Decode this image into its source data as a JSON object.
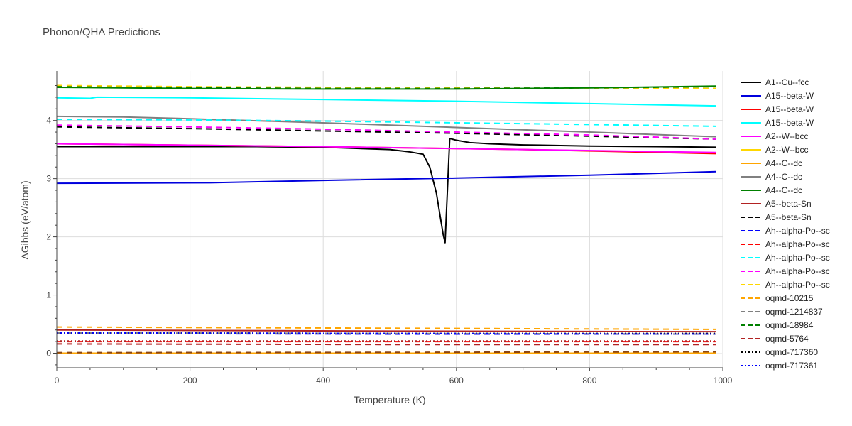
{
  "chart_data": {
    "type": "line",
    "title": "Phonon/QHA Predictions",
    "xlabel": "Temperature (K)",
    "ylabel": "ΔGibbs (eV/atom)",
    "xlim": [
      0,
      1000
    ],
    "ylim": [
      -0.25,
      4.85
    ],
    "xticks": [
      0,
      200,
      400,
      600,
      800,
      1000
    ],
    "yticks": [
      0,
      1,
      2,
      3,
      4
    ],
    "grid": true,
    "legend_position": "right",
    "series": [
      {
        "name": "A1--Cu--fcc",
        "color": "#000000",
        "dash": "solid",
        "x": [
          0,
          100,
          200,
          300,
          400,
          450,
          500,
          530,
          540,
          550,
          560,
          570,
          580,
          583,
          590,
          600,
          620,
          650,
          700,
          800,
          900,
          990
        ],
        "y": [
          3.55,
          3.55,
          3.55,
          3.55,
          3.54,
          3.52,
          3.5,
          3.46,
          3.44,
          3.42,
          3.2,
          2.75,
          2.05,
          1.9,
          3.69,
          3.66,
          3.62,
          3.6,
          3.58,
          3.56,
          3.55,
          3.54
        ]
      },
      {
        "name": "A15--beta-W",
        "color": "#0000dd",
        "dash": "solid",
        "x": [
          0,
          230,
          400,
          600,
          800,
          990
        ],
        "y": [
          2.92,
          2.93,
          2.97,
          3.01,
          3.06,
          3.12
        ]
      },
      {
        "name": "A15--beta-W",
        "color": "#ff0000",
        "dash": "solid",
        "x": [
          0,
          400,
          700,
          990
        ],
        "y": [
          3.6,
          3.55,
          3.5,
          3.43
        ]
      },
      {
        "name": "A15--beta-W",
        "color": "#00ffff",
        "dash": "solid",
        "x": [
          0,
          50,
          60,
          200,
          400,
          600,
          800,
          990
        ],
        "y": [
          4.39,
          4.38,
          4.4,
          4.39,
          4.36,
          4.33,
          4.29,
          4.25
        ]
      },
      {
        "name": "A2--W--bcc",
        "color": "#ff00ff",
        "dash": "solid",
        "x": [
          0,
          400,
          700,
          990
        ],
        "y": [
          3.6,
          3.55,
          3.5,
          3.45
        ]
      },
      {
        "name": "A2--W--bcc",
        "color": "#ffd700",
        "dash": "solid",
        "x": [
          0,
          500,
          990
        ],
        "y": [
          0.0,
          0.0,
          0.0
        ]
      },
      {
        "name": "A4--C--dc",
        "color": "#ffa500",
        "dash": "solid",
        "x": [
          0,
          500,
          990
        ],
        "y": [
          0.0,
          0.0,
          0.0
        ]
      },
      {
        "name": "A4--C--dc",
        "color": "#808080",
        "dash": "solid",
        "x": [
          0,
          100,
          200,
          400,
          600,
          800,
          990
        ],
        "y": [
          4.07,
          4.06,
          4.03,
          3.96,
          3.88,
          3.8,
          3.72
        ]
      },
      {
        "name": "A4--C--dc",
        "color": "#008000",
        "dash": "solid",
        "x": [
          0,
          200,
          400,
          600,
          800,
          990
        ],
        "y": [
          4.57,
          4.55,
          4.54,
          4.54,
          4.56,
          4.59
        ]
      },
      {
        "name": "A5--beta-Sn",
        "color": "#b22222",
        "dash": "solid",
        "x": [
          0,
          500,
          990
        ],
        "y": [
          0.4,
          0.38,
          0.37
        ]
      },
      {
        "name": "A5--beta-Sn",
        "color": "#000000",
        "dash": "dash",
        "x": [
          0,
          200,
          400,
          600,
          800,
          990
        ],
        "y": [
          3.89,
          3.86,
          3.82,
          3.78,
          3.73,
          3.68
        ]
      },
      {
        "name": "Ah--alpha-Po--sc",
        "color": "#0000ff",
        "dash": "dash",
        "x": [
          0,
          500,
          990
        ],
        "y": [
          0.34,
          0.33,
          0.33
        ]
      },
      {
        "name": "Ah--alpha-Po--sc",
        "color": "#ff0000",
        "dash": "dash",
        "x": [
          0,
          500,
          990
        ],
        "y": [
          0.2,
          0.2,
          0.2
        ]
      },
      {
        "name": "Ah--alpha-Po--sc",
        "color": "#00ffff",
        "dash": "dash",
        "x": [
          0,
          200,
          400,
          600,
          800,
          990
        ],
        "y": [
          4.02,
          4.01,
          3.99,
          3.96,
          3.93,
          3.9
        ]
      },
      {
        "name": "Ah--alpha-Po--sc",
        "color": "#ff00ff",
        "dash": "dash",
        "x": [
          0,
          200,
          400,
          600,
          800,
          990
        ],
        "y": [
          3.92,
          3.89,
          3.85,
          3.8,
          3.75,
          3.68
        ]
      },
      {
        "name": "Ah--alpha-Po--sc",
        "color": "#ffd700",
        "dash": "dash",
        "x": [
          0,
          200,
          400,
          600,
          800,
          990
        ],
        "y": [
          4.6,
          4.58,
          4.57,
          4.56,
          4.55,
          4.55
        ]
      },
      {
        "name": "oqmd-10215",
        "color": "#ffa500",
        "dash": "dash",
        "x": [
          0,
          500,
          990
        ],
        "y": [
          0.45,
          0.43,
          0.41
        ]
      },
      {
        "name": "oqmd-1214837",
        "color": "#808080",
        "dash": "dash",
        "x": [
          0,
          500,
          990
        ],
        "y": [
          0.35,
          0.34,
          0.33
        ]
      },
      {
        "name": "oqmd-18984",
        "color": "#008000",
        "dash": "dash",
        "x": [
          0,
          200,
          400,
          600,
          800,
          990
        ],
        "y": [
          4.58,
          4.56,
          4.55,
          4.55,
          4.56,
          4.58
        ]
      },
      {
        "name": "oqmd-5764",
        "color": "#b22222",
        "dash": "dash",
        "x": [
          0,
          500,
          990
        ],
        "y": [
          0.16,
          0.15,
          0.15
        ]
      },
      {
        "name": "oqmd-717360",
        "color": "#000000",
        "dash": "dot",
        "x": [
          0,
          500,
          990
        ],
        "y": [
          0.35,
          0.34,
          0.34
        ]
      },
      {
        "name": "oqmd-717361",
        "color": "#0000ff",
        "dash": "dot",
        "x": [
          0,
          500,
          990
        ],
        "y": [
          0.35,
          0.34,
          0.33
        ]
      },
      {
        "name": "",
        "color": "#b22222",
        "dash": "dot",
        "x": [
          0,
          500,
          990
        ],
        "y": [
          0.21,
          0.21,
          0.21
        ]
      },
      {
        "name": "",
        "color": "#8b4513",
        "dash": "dash",
        "x": [
          0,
          500,
          990
        ],
        "y": [
          0.01,
          0.015,
          0.025
        ]
      }
    ]
  }
}
